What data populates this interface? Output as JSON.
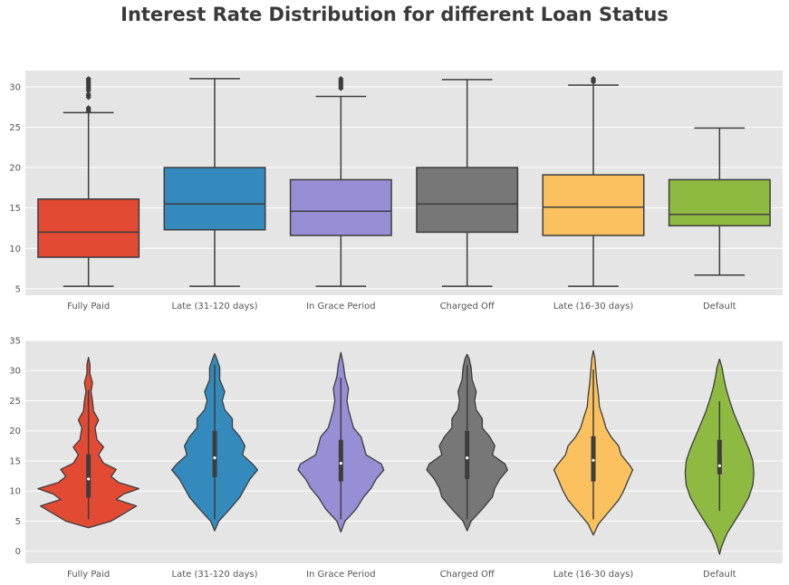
{
  "figure": {
    "title": "Interest Rate Distribution for different Loan Status"
  },
  "chart_data": [
    {
      "type": "box",
      "categories": [
        "Fully Paid",
        "Late (31-120 days)",
        "In Grace Period",
        "Charged Off",
        "Late (16-30 days)",
        "Default"
      ],
      "ylim": [
        4.2,
        32.0
      ],
      "yticks": [
        "5",
        "10",
        "15",
        "20",
        "25",
        "30"
      ],
      "grid": true,
      "boxes": [
        {
          "color": "#E24A33",
          "whisker_low": 5.3,
          "q1": 8.9,
          "median": 12.0,
          "q3": 16.1,
          "whisker_high": 26.8,
          "outliers": [
            27.0,
            27.2,
            27.4,
            28.7,
            28.9,
            29.1,
            29.5,
            29.7,
            29.9,
            30.1,
            30.3,
            30.5,
            30.7,
            30.9,
            31.0
          ]
        },
        {
          "color": "#348ABD",
          "whisker_low": 5.3,
          "q1": 12.3,
          "median": 15.5,
          "q3": 20.0,
          "whisker_high": 31.0,
          "outliers": []
        },
        {
          "color": "#988ED5",
          "whisker_low": 5.3,
          "q1": 11.6,
          "median": 14.6,
          "q3": 18.5,
          "whisker_high": 28.8,
          "outliers": [
            29.8,
            30.0,
            30.2,
            30.4,
            30.6,
            30.8,
            31.0
          ]
        },
        {
          "color": "#777777",
          "whisker_low": 5.3,
          "q1": 12.0,
          "median": 15.5,
          "q3": 20.0,
          "whisker_high": 30.9,
          "outliers": []
        },
        {
          "color": "#FBC15E",
          "whisker_low": 5.3,
          "q1": 11.6,
          "median": 15.1,
          "q3": 19.1,
          "whisker_high": 30.2,
          "outliers": [
            30.6,
            30.8,
            31.0
          ]
        },
        {
          "color": "#8EBA42",
          "whisker_low": 6.7,
          "q1": 12.8,
          "median": 14.2,
          "q3": 18.5,
          "whisker_high": 24.9,
          "outliers": []
        }
      ]
    },
    {
      "type": "violin",
      "categories": [
        "Fully Paid",
        "Late (31-120 days)",
        "In Grace Period",
        "Charged Off",
        "Late (16-30 days)",
        "Default"
      ],
      "ylim": [
        -2.0,
        35.0
      ],
      "yticks": [
        "0",
        "5",
        "10",
        "15",
        "20",
        "25",
        "30",
        "35"
      ],
      "grid": true,
      "violins": [
        {
          "color": "#E24A33",
          "q1": 8.9,
          "median": 12.0,
          "q3": 16.1,
          "whisker_low": 5.3,
          "whisker_high": 26.8,
          "profile": [
            [
              3.9,
              0.0
            ],
            [
              5.0,
              0.45
            ],
            [
              6.5,
              0.75
            ],
            [
              7.5,
              0.95
            ],
            [
              8.6,
              0.55
            ],
            [
              9.5,
              0.7
            ],
            [
              10.4,
              1.0
            ],
            [
              11.4,
              0.6
            ],
            [
              12.4,
              0.45
            ],
            [
              13.6,
              0.55
            ],
            [
              14.6,
              0.3
            ],
            [
              16.0,
              0.2
            ],
            [
              17.3,
              0.3
            ],
            [
              18.5,
              0.17
            ],
            [
              20.5,
              0.13
            ],
            [
              21.8,
              0.2
            ],
            [
              23.3,
              0.1
            ],
            [
              25.0,
              0.08
            ],
            [
              26.5,
              0.05
            ],
            [
              28.0,
              0.08
            ],
            [
              29.5,
              0.03
            ],
            [
              31.0,
              0.03
            ],
            [
              32.2,
              0.0
            ]
          ]
        },
        {
          "color": "#348ABD",
          "q1": 12.3,
          "median": 15.5,
          "q3": 20.0,
          "whisker_low": 5.3,
          "whisker_high": 31.0,
          "profile": [
            [
              3.4,
              0.0
            ],
            [
              5.0,
              0.08
            ],
            [
              7.0,
              0.3
            ],
            [
              9.0,
              0.5
            ],
            [
              10.5,
              0.6
            ],
            [
              12.0,
              0.7
            ],
            [
              13.5,
              0.85
            ],
            [
              14.5,
              0.75
            ],
            [
              16.0,
              0.55
            ],
            [
              17.5,
              0.6
            ],
            [
              19.0,
              0.5
            ],
            [
              20.5,
              0.35
            ],
            [
              22.0,
              0.35
            ],
            [
              23.5,
              0.2
            ],
            [
              25.0,
              0.15
            ],
            [
              26.5,
              0.2
            ],
            [
              28.5,
              0.1
            ],
            [
              30.5,
              0.1
            ],
            [
              32.0,
              0.04
            ],
            [
              32.8,
              0.0
            ]
          ]
        },
        {
          "color": "#988ED5",
          "q1": 11.6,
          "median": 14.6,
          "q3": 18.5,
          "whisker_low": 5.3,
          "whisker_high": 28.8,
          "profile": [
            [
              3.2,
              0.0
            ],
            [
              5.0,
              0.08
            ],
            [
              7.0,
              0.3
            ],
            [
              9.0,
              0.45
            ],
            [
              10.5,
              0.6
            ],
            [
              12.0,
              0.7
            ],
            [
              13.5,
              0.85
            ],
            [
              14.5,
              0.8
            ],
            [
              16.0,
              0.5
            ],
            [
              17.5,
              0.45
            ],
            [
              19.0,
              0.4
            ],
            [
              20.5,
              0.25
            ],
            [
              22.0,
              0.2
            ],
            [
              23.5,
              0.15
            ],
            [
              25.0,
              0.12
            ],
            [
              27.0,
              0.15
            ],
            [
              29.0,
              0.08
            ],
            [
              31.0,
              0.05
            ],
            [
              33.0,
              0.0
            ]
          ]
        },
        {
          "color": "#777777",
          "q1": 12.0,
          "median": 15.5,
          "q3": 20.0,
          "whisker_low": 5.3,
          "whisker_high": 30.9,
          "profile": [
            [
              3.4,
              0.0
            ],
            [
              5.0,
              0.08
            ],
            [
              7.0,
              0.3
            ],
            [
              9.0,
              0.5
            ],
            [
              10.5,
              0.55
            ],
            [
              12.0,
              0.65
            ],
            [
              13.5,
              0.8
            ],
            [
              14.5,
              0.75
            ],
            [
              16.0,
              0.5
            ],
            [
              17.5,
              0.55
            ],
            [
              19.0,
              0.45
            ],
            [
              20.5,
              0.3
            ],
            [
              22.0,
              0.3
            ],
            [
              23.5,
              0.18
            ],
            [
              25.0,
              0.15
            ],
            [
              26.5,
              0.18
            ],
            [
              28.5,
              0.1
            ],
            [
              30.5,
              0.08
            ],
            [
              32.0,
              0.04
            ],
            [
              32.7,
              0.0
            ]
          ]
        },
        {
          "color": "#FBC15E",
          "q1": 11.6,
          "median": 15.1,
          "q3": 19.1,
          "whisker_low": 5.3,
          "whisker_high": 30.2,
          "profile": [
            [
              2.7,
              0.0
            ],
            [
              4.5,
              0.1
            ],
            [
              6.5,
              0.3
            ],
            [
              8.5,
              0.5
            ],
            [
              10.0,
              0.6
            ],
            [
              12.0,
              0.7
            ],
            [
              13.5,
              0.78
            ],
            [
              14.5,
              0.7
            ],
            [
              16.0,
              0.55
            ],
            [
              17.5,
              0.5
            ],
            [
              19.0,
              0.35
            ],
            [
              20.5,
              0.25
            ],
            [
              22.0,
              0.2
            ],
            [
              24.0,
              0.12
            ],
            [
              26.0,
              0.1
            ],
            [
              28.0,
              0.07
            ],
            [
              30.0,
              0.05
            ],
            [
              32.0,
              0.03
            ],
            [
              33.3,
              0.0
            ]
          ]
        },
        {
          "color": "#8EBA42",
          "q1": 12.8,
          "median": 14.2,
          "q3": 18.5,
          "whisker_low": 6.7,
          "whisker_high": 24.9,
          "profile": [
            [
              -0.5,
              0.0
            ],
            [
              1.0,
              0.05
            ],
            [
              3.0,
              0.15
            ],
            [
              5.0,
              0.3
            ],
            [
              7.0,
              0.45
            ],
            [
              9.0,
              0.58
            ],
            [
              11.0,
              0.66
            ],
            [
              13.0,
              0.68
            ],
            [
              15.0,
              0.66
            ],
            [
              17.0,
              0.58
            ],
            [
              19.0,
              0.48
            ],
            [
              21.0,
              0.38
            ],
            [
              23.0,
              0.28
            ],
            [
              25.0,
              0.2
            ],
            [
              27.0,
              0.13
            ],
            [
              29.0,
              0.08
            ],
            [
              30.5,
              0.05
            ],
            [
              31.9,
              0.0
            ]
          ]
        }
      ]
    }
  ]
}
